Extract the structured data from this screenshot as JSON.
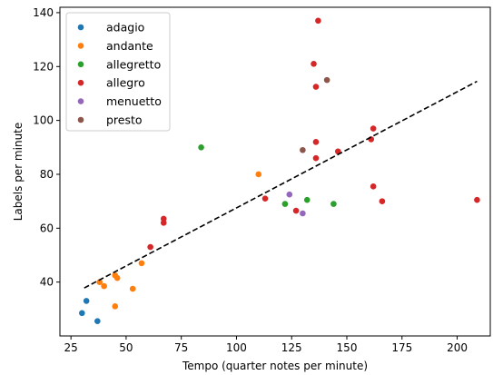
{
  "chart_data": {
    "type": "scatter",
    "title": "",
    "xlabel": "Tempo (quarter notes per minute)",
    "ylabel": "Labels per minute",
    "xlim": [
      20,
      215
    ],
    "ylim": [
      20,
      142
    ],
    "xticks": [
      25,
      50,
      75,
      100,
      125,
      150,
      175,
      200
    ],
    "yticks": [
      40,
      60,
      80,
      100,
      120,
      140
    ],
    "grid": false,
    "legend_position": "upper-left",
    "series": [
      {
        "name": "adagio",
        "color": "#1f77b4",
        "points": [
          [
            30,
            28.5
          ],
          [
            32,
            33
          ],
          [
            37,
            25.5
          ]
        ]
      },
      {
        "name": "andante",
        "color": "#ff7f0e",
        "points": [
          [
            38,
            40
          ],
          [
            40,
            38.5
          ],
          [
            45,
            42.5
          ],
          [
            46,
            41.5
          ],
          [
            45,
            31
          ],
          [
            53,
            37.5
          ],
          [
            57,
            47
          ],
          [
            110,
            80
          ]
        ]
      },
      {
        "name": "allegretto",
        "color": "#2ca02c",
        "points": [
          [
            84,
            90
          ],
          [
            122,
            69
          ],
          [
            132,
            70.5
          ],
          [
            144,
            69
          ]
        ]
      },
      {
        "name": "allegro",
        "color": "#d62728",
        "points": [
          [
            61,
            53
          ],
          [
            67,
            62
          ],
          [
            67,
            63.5
          ],
          [
            113,
            71
          ],
          [
            127,
            66.5
          ],
          [
            135,
            121
          ],
          [
            136,
            112.5
          ],
          [
            136,
            92
          ],
          [
            136,
            86
          ],
          [
            137,
            137
          ],
          [
            146,
            88.5
          ],
          [
            161,
            93
          ],
          [
            162,
            97
          ],
          [
            162,
            75.5
          ],
          [
            166,
            70
          ],
          [
            209,
            70.5
          ]
        ]
      },
      {
        "name": "menuetto",
        "color": "#9467bd",
        "points": [
          [
            124,
            72.5
          ],
          [
            130,
            65.5
          ]
        ]
      },
      {
        "name": "presto",
        "color": "#8c564b",
        "points": [
          [
            130,
            89
          ],
          [
            141,
            115
          ]
        ]
      }
    ],
    "trendline": {
      "style": "dashed",
      "color": "#000000",
      "from": [
        31,
        37.8
      ],
      "to": [
        209,
        114.5
      ]
    }
  }
}
